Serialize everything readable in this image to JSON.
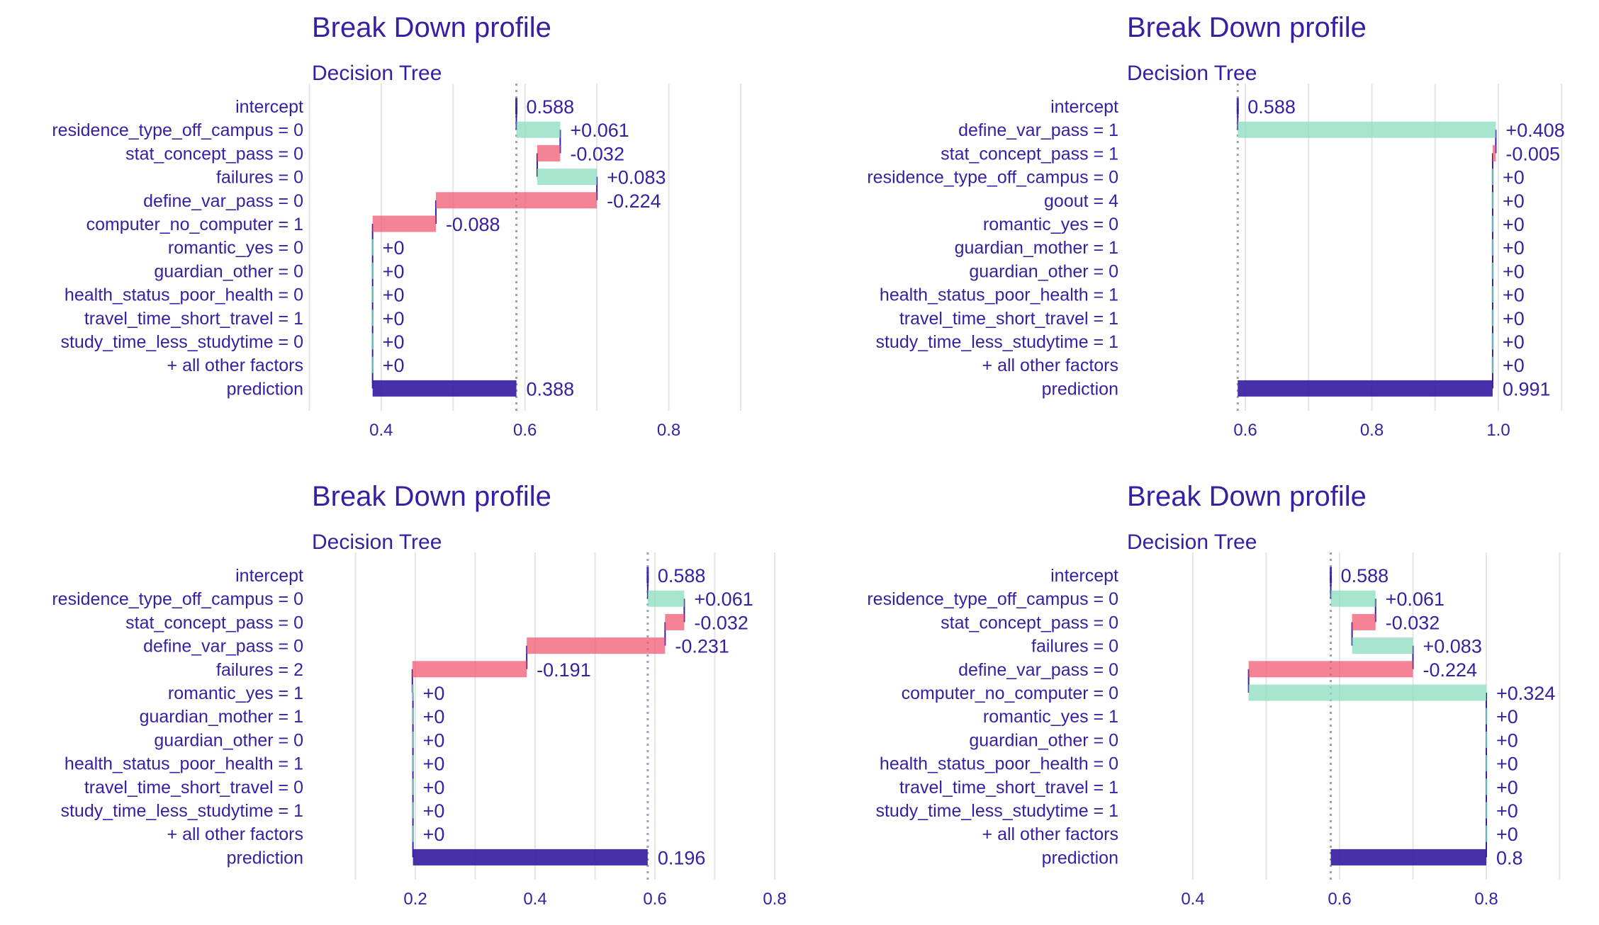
{
  "colors": {
    "text": "#371ea3",
    "positive": "#8bdcbe",
    "negative": "#f05a71",
    "prediction": "#371ea3",
    "grid": "#e5e5e5",
    "baseline": "#9aa0b8"
  },
  "chart_data": [
    {
      "type": "bar",
      "subtype": "break-down-waterfall",
      "title": "Break Down profile",
      "subtitle": "Decision Tree",
      "xlim": [
        0.2,
        0.9
      ],
      "xticks": [
        0.4,
        0.6,
        0.8
      ],
      "xtick_labels": [
        "0.4",
        "0.6",
        "0.8"
      ],
      "gridlines": [
        0.3,
        0.4,
        0.5,
        0.6,
        0.7,
        0.8,
        0.9
      ],
      "baseline": 0.588,
      "rows": [
        {
          "label": "intercept",
          "kind": "intercept",
          "start": 0.588,
          "end": 0.588,
          "text": "0.588"
        },
        {
          "label": "residence_type_off_campus = 0",
          "kind": "contribution",
          "start": 0.588,
          "end": 0.649,
          "text": "+0.061"
        },
        {
          "label": "stat_concept_pass = 0",
          "kind": "contribution",
          "start": 0.649,
          "end": 0.617,
          "text": "-0.032"
        },
        {
          "label": "failures = 0",
          "kind": "contribution",
          "start": 0.617,
          "end": 0.7,
          "text": "+0.083"
        },
        {
          "label": "define_var_pass = 0",
          "kind": "contribution",
          "start": 0.7,
          "end": 0.476,
          "text": "-0.224"
        },
        {
          "label": "computer_no_computer = 1",
          "kind": "contribution",
          "start": 0.476,
          "end": 0.388,
          "text": "-0.088"
        },
        {
          "label": "romantic_yes = 0",
          "kind": "contribution",
          "start": 0.388,
          "end": 0.388,
          "text": "+0"
        },
        {
          "label": "guardian_other = 0",
          "kind": "contribution",
          "start": 0.388,
          "end": 0.388,
          "text": "+0"
        },
        {
          "label": "health_status_poor_health = 0",
          "kind": "contribution",
          "start": 0.388,
          "end": 0.388,
          "text": "+0"
        },
        {
          "label": "travel_time_short_travel = 1",
          "kind": "contribution",
          "start": 0.388,
          "end": 0.388,
          "text": "+0"
        },
        {
          "label": "study_time_less_studytime = 0",
          "kind": "contribution",
          "start": 0.388,
          "end": 0.388,
          "text": "+0"
        },
        {
          "label": "+ all other factors",
          "kind": "contribution",
          "start": 0.388,
          "end": 0.388,
          "text": "+0"
        },
        {
          "label": "prediction",
          "kind": "prediction",
          "start": 0.588,
          "end": 0.388,
          "text": "0.388"
        }
      ]
    },
    {
      "type": "bar",
      "subtype": "break-down-waterfall",
      "title": "Break Down profile",
      "subtitle": "Decision Tree",
      "xlim": [
        0.59,
        1.1
      ],
      "xticks": [
        0.6,
        0.8,
        1.0
      ],
      "xtick_labels": [
        "0.6",
        "0.8",
        "1.0"
      ],
      "gridlines": [
        0.6,
        0.7,
        0.8,
        0.9,
        1.0,
        1.1
      ],
      "baseline": 0.588,
      "rows": [
        {
          "label": "intercept",
          "kind": "intercept",
          "start": 0.588,
          "end": 0.588,
          "text": "0.588"
        },
        {
          "label": "define_var_pass = 1",
          "kind": "contribution",
          "start": 0.588,
          "end": 0.996,
          "text": "+0.408"
        },
        {
          "label": "stat_concept_pass = 1",
          "kind": "contribution",
          "start": 0.996,
          "end": 0.991,
          "text": "-0.005"
        },
        {
          "label": "residence_type_off_campus = 0",
          "kind": "contribution",
          "start": 0.991,
          "end": 0.991,
          "text": "+0"
        },
        {
          "label": "goout = 4",
          "kind": "contribution",
          "start": 0.991,
          "end": 0.991,
          "text": "+0"
        },
        {
          "label": "romantic_yes = 0",
          "kind": "contribution",
          "start": 0.991,
          "end": 0.991,
          "text": "+0"
        },
        {
          "label": "guardian_mother = 1",
          "kind": "contribution",
          "start": 0.991,
          "end": 0.991,
          "text": "+0"
        },
        {
          "label": "guardian_other = 0",
          "kind": "contribution",
          "start": 0.991,
          "end": 0.991,
          "text": "+0"
        },
        {
          "label": "health_status_poor_health = 1",
          "kind": "contribution",
          "start": 0.991,
          "end": 0.991,
          "text": "+0"
        },
        {
          "label": "travel_time_short_travel = 1",
          "kind": "contribution",
          "start": 0.991,
          "end": 0.991,
          "text": "+0"
        },
        {
          "label": "study_time_less_studytime = 1",
          "kind": "contribution",
          "start": 0.991,
          "end": 0.991,
          "text": "+0"
        },
        {
          "label": "+ all other factors",
          "kind": "contribution",
          "start": 0.991,
          "end": 0.991,
          "text": "+0"
        },
        {
          "label": "prediction",
          "kind": "prediction",
          "start": 0.588,
          "end": 0.991,
          "text": "0.991"
        }
      ]
    },
    {
      "type": "bar",
      "subtype": "break-down-waterfall",
      "title": "Break Down profile",
      "subtitle": "Decision Tree",
      "xlim": [
        0.1,
        0.8
      ],
      "xticks": [
        0.2,
        0.4,
        0.6,
        0.8
      ],
      "xtick_labels": [
        "0.2",
        "0.4",
        "0.6",
        "0.8"
      ],
      "gridlines": [
        0.1,
        0.2,
        0.3,
        0.4,
        0.5,
        0.6,
        0.7,
        0.8
      ],
      "baseline": 0.588,
      "rows": [
        {
          "label": "intercept",
          "kind": "intercept",
          "start": 0.588,
          "end": 0.588,
          "text": "0.588"
        },
        {
          "label": "residence_type_off_campus = 0",
          "kind": "contribution",
          "start": 0.588,
          "end": 0.649,
          "text": "+0.061"
        },
        {
          "label": "stat_concept_pass = 0",
          "kind": "contribution",
          "start": 0.649,
          "end": 0.617,
          "text": "-0.032"
        },
        {
          "label": "define_var_pass = 0",
          "kind": "contribution",
          "start": 0.617,
          "end": 0.386,
          "text": "-0.231"
        },
        {
          "label": "failures = 2",
          "kind": "contribution",
          "start": 0.386,
          "end": 0.195,
          "text": "-0.191"
        },
        {
          "label": "romantic_yes = 1",
          "kind": "contribution",
          "start": 0.196,
          "end": 0.196,
          "text": "+0"
        },
        {
          "label": "guardian_mother = 1",
          "kind": "contribution",
          "start": 0.196,
          "end": 0.196,
          "text": "+0"
        },
        {
          "label": "guardian_other = 0",
          "kind": "contribution",
          "start": 0.196,
          "end": 0.196,
          "text": "+0"
        },
        {
          "label": "health_status_poor_health = 1",
          "kind": "contribution",
          "start": 0.196,
          "end": 0.196,
          "text": "+0"
        },
        {
          "label": "travel_time_short_travel = 0",
          "kind": "contribution",
          "start": 0.196,
          "end": 0.196,
          "text": "+0"
        },
        {
          "label": "study_time_less_studytime = 1",
          "kind": "contribution",
          "start": 0.196,
          "end": 0.196,
          "text": "+0"
        },
        {
          "label": "+ all other factors",
          "kind": "contribution",
          "start": 0.196,
          "end": 0.196,
          "text": "+0"
        },
        {
          "label": "prediction",
          "kind": "prediction",
          "start": 0.588,
          "end": 0.196,
          "text": "0.196"
        }
      ]
    },
    {
      "type": "bar",
      "subtype": "break-down-waterfall",
      "title": "Break Down profile",
      "subtitle": "Decision Tree",
      "xlim": [
        0.4,
        0.9
      ],
      "xticks": [
        0.4,
        0.6,
        0.8
      ],
      "xtick_labels": [
        "0.4",
        "0.6",
        "0.8"
      ],
      "gridlines": [
        0.4,
        0.5,
        0.6,
        0.7,
        0.8,
        0.9
      ],
      "baseline": 0.588,
      "rows": [
        {
          "label": "intercept",
          "kind": "intercept",
          "start": 0.588,
          "end": 0.588,
          "text": "0.588"
        },
        {
          "label": "residence_type_off_campus = 0",
          "kind": "contribution",
          "start": 0.588,
          "end": 0.649,
          "text": "+0.061"
        },
        {
          "label": "stat_concept_pass = 0",
          "kind": "contribution",
          "start": 0.649,
          "end": 0.617,
          "text": "-0.032"
        },
        {
          "label": "failures = 0",
          "kind": "contribution",
          "start": 0.617,
          "end": 0.7,
          "text": "+0.083"
        },
        {
          "label": "define_var_pass = 0",
          "kind": "contribution",
          "start": 0.7,
          "end": 0.476,
          "text": "-0.224"
        },
        {
          "label": "computer_no_computer = 0",
          "kind": "contribution",
          "start": 0.476,
          "end": 0.8,
          "text": "+0.324"
        },
        {
          "label": "romantic_yes = 1",
          "kind": "contribution",
          "start": 0.8,
          "end": 0.8,
          "text": "+0"
        },
        {
          "label": "guardian_other = 0",
          "kind": "contribution",
          "start": 0.8,
          "end": 0.8,
          "text": "+0"
        },
        {
          "label": "health_status_poor_health = 0",
          "kind": "contribution",
          "start": 0.8,
          "end": 0.8,
          "text": "+0"
        },
        {
          "label": "travel_time_short_travel = 1",
          "kind": "contribution",
          "start": 0.8,
          "end": 0.8,
          "text": "+0"
        },
        {
          "label": "study_time_less_studytime = 1",
          "kind": "contribution",
          "start": 0.8,
          "end": 0.8,
          "text": "+0"
        },
        {
          "label": "+ all other factors",
          "kind": "contribution",
          "start": 0.8,
          "end": 0.8,
          "text": "+0"
        },
        {
          "label": "prediction",
          "kind": "prediction",
          "start": 0.588,
          "end": 0.8,
          "text": "0.8"
        }
      ]
    }
  ]
}
